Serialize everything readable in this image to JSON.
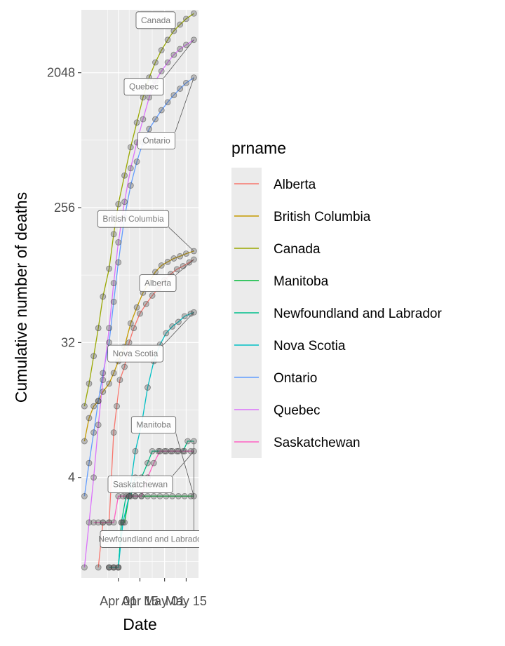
{
  "chart_data": {
    "type": "line",
    "xlabel": "Date",
    "ylabel": "Cumulative number of deaths",
    "y_scale": "log2",
    "ylim": [
      0.85,
      5400
    ],
    "y_ticks": [
      {
        "value": 4,
        "label": "4"
      },
      {
        "value": 32,
        "label": "32"
      },
      {
        "value": 256,
        "label": "256"
      },
      {
        "value": 2048,
        "label": "2048"
      }
    ],
    "x_ticks": [
      {
        "value": "2020-04-01",
        "label": "Apr 01"
      },
      {
        "value": "2020-04-15",
        "label": "Apr 15"
      },
      {
        "value": "2020-05-01",
        "label": "May 01"
      },
      {
        "value": "2020-05-15",
        "label": "May 15"
      }
    ],
    "xlim": [
      "2020-03-08",
      "2020-05-23"
    ],
    "grid": true,
    "legend": {
      "title": "prname",
      "position": "right"
    },
    "series": [
      {
        "name": "Alberta",
        "color": "#F8766D",
        "label": "Alberta",
        "points": [
          [
            "2020-03-19",
            1
          ],
          [
            "2020-03-22",
            2
          ],
          [
            "2020-03-26",
            2
          ],
          [
            "2020-03-29",
            8
          ],
          [
            "2020-03-31",
            12
          ],
          [
            "2020-04-02",
            18
          ],
          [
            "2020-04-05",
            22
          ],
          [
            "2020-04-08",
            32
          ],
          [
            "2020-04-11",
            40
          ],
          [
            "2020-04-15",
            50
          ],
          [
            "2020-04-19",
            58
          ],
          [
            "2020-04-23",
            66
          ],
          [
            "2020-04-27",
            74
          ],
          [
            "2020-05-01",
            84
          ],
          [
            "2020-05-05",
            92
          ],
          [
            "2020-05-09",
            99
          ],
          [
            "2020-05-13",
            104
          ],
          [
            "2020-05-17",
            110
          ],
          [
            "2020-05-20",
            115
          ]
        ]
      },
      {
        "name": "British Columbia",
        "color": "#C49A00",
        "label": "British Columbia",
        "points": [
          [
            "2020-03-10",
            7
          ],
          [
            "2020-03-13",
            10
          ],
          [
            "2020-03-16",
            12
          ],
          [
            "2020-03-19",
            13
          ],
          [
            "2020-03-22",
            15
          ],
          [
            "2020-03-26",
            17
          ],
          [
            "2020-03-29",
            20
          ],
          [
            "2020-04-01",
            24
          ],
          [
            "2020-04-05",
            30
          ],
          [
            "2020-04-09",
            43
          ],
          [
            "2020-04-13",
            55
          ],
          [
            "2020-04-17",
            69
          ],
          [
            "2020-04-21",
            81
          ],
          [
            "2020-04-25",
            95
          ],
          [
            "2020-04-29",
            105
          ],
          [
            "2020-05-03",
            111
          ],
          [
            "2020-05-07",
            117
          ],
          [
            "2020-05-11",
            121
          ],
          [
            "2020-05-15",
            126
          ],
          [
            "2020-05-20",
            131
          ]
        ]
      },
      {
        "name": "Canada",
        "color": "#99A800",
        "label": "Canada",
        "points": [
          [
            "2020-03-10",
            12
          ],
          [
            "2020-03-13",
            17
          ],
          [
            "2020-03-16",
            26
          ],
          [
            "2020-03-19",
            40
          ],
          [
            "2020-03-22",
            65
          ],
          [
            "2020-03-26",
            100
          ],
          [
            "2020-03-29",
            170
          ],
          [
            "2020-04-01",
            270
          ],
          [
            "2020-04-05",
            420
          ],
          [
            "2020-04-09",
            650
          ],
          [
            "2020-04-13",
            950
          ],
          [
            "2020-04-17",
            1400
          ],
          [
            "2020-04-21",
            1900
          ],
          [
            "2020-04-25",
            2400
          ],
          [
            "2020-04-29",
            2900
          ],
          [
            "2020-05-03",
            3400
          ],
          [
            "2020-05-07",
            3900
          ],
          [
            "2020-05-11",
            4300
          ],
          [
            "2020-05-15",
            4700
          ],
          [
            "2020-05-20",
            5100
          ]
        ]
      },
      {
        "name": "Manitoba",
        "color": "#00BA38",
        "label": "Manitoba",
        "points": [
          [
            "2020-03-26",
            1
          ],
          [
            "2020-03-29",
            1
          ],
          [
            "2020-04-01",
            1
          ],
          [
            "2020-04-03",
            2
          ],
          [
            "2020-04-05",
            2
          ],
          [
            "2020-04-08",
            3
          ],
          [
            "2020-04-12",
            3
          ],
          [
            "2020-04-16",
            3
          ],
          [
            "2020-04-20",
            3
          ],
          [
            "2020-04-24",
            3
          ],
          [
            "2020-04-28",
            3
          ],
          [
            "2020-05-02",
            3
          ],
          [
            "2020-05-06",
            3
          ],
          [
            "2020-05-10",
            3
          ],
          [
            "2020-05-14",
            3
          ],
          [
            "2020-05-18",
            3
          ],
          [
            "2020-05-20",
            3
          ]
        ]
      },
      {
        "name": "Newfoundland and Labrador",
        "color": "#00C08B",
        "label": "Newfoundland and Labrador",
        "points": [
          [
            "2020-03-26",
            1
          ],
          [
            "2020-03-29",
            1
          ],
          [
            "2020-04-01",
            1
          ],
          [
            "2020-04-03",
            2
          ],
          [
            "2020-04-06",
            3
          ],
          [
            "2020-04-09",
            3
          ],
          [
            "2020-04-12",
            4
          ],
          [
            "2020-04-16",
            4
          ],
          [
            "2020-04-20",
            5
          ],
          [
            "2020-04-23",
            6
          ],
          [
            "2020-04-27",
            6
          ],
          [
            "2020-05-01",
            6
          ],
          [
            "2020-05-05",
            6
          ],
          [
            "2020-05-09",
            6
          ],
          [
            "2020-05-13",
            6
          ],
          [
            "2020-05-16",
            7
          ],
          [
            "2020-05-20",
            7
          ]
        ]
      },
      {
        "name": "Nova Scotia",
        "color": "#00BFC4",
        "label": "Nova Scotia",
        "points": [
          [
            "2020-03-26",
            1
          ],
          [
            "2020-03-29",
            1
          ],
          [
            "2020-04-01",
            1
          ],
          [
            "2020-04-04",
            2
          ],
          [
            "2020-04-08",
            3
          ],
          [
            "2020-04-12",
            6
          ],
          [
            "2020-04-16",
            9
          ],
          [
            "2020-04-20",
            16
          ],
          [
            "2020-04-24",
            24
          ],
          [
            "2020-04-28",
            31
          ],
          [
            "2020-05-02",
            37
          ],
          [
            "2020-05-06",
            41
          ],
          [
            "2020-05-10",
            44
          ],
          [
            "2020-05-14",
            48
          ],
          [
            "2020-05-18",
            50
          ],
          [
            "2020-05-20",
            51
          ]
        ]
      },
      {
        "name": "Ontario",
        "color": "#619CFF",
        "label": "Ontario",
        "points": [
          [
            "2020-03-10",
            3
          ],
          [
            "2020-03-13",
            5
          ],
          [
            "2020-03-16",
            8
          ],
          [
            "2020-03-19",
            13
          ],
          [
            "2020-03-22",
            20
          ],
          [
            "2020-03-26",
            32
          ],
          [
            "2020-03-29",
            60
          ],
          [
            "2020-04-01",
            110
          ],
          [
            "2020-04-05",
            220
          ],
          [
            "2020-04-09",
            360
          ],
          [
            "2020-04-13",
            520
          ],
          [
            "2020-04-17",
            700
          ],
          [
            "2020-04-21",
            860
          ],
          [
            "2020-04-25",
            1000
          ],
          [
            "2020-04-29",
            1150
          ],
          [
            "2020-05-03",
            1300
          ],
          [
            "2020-05-07",
            1450
          ],
          [
            "2020-05-11",
            1600
          ],
          [
            "2020-05-15",
            1750
          ],
          [
            "2020-05-20",
            1900
          ]
        ]
      },
      {
        "name": "Quebec",
        "color": "#DB72FB",
        "label": "Quebec",
        "points": [
          [
            "2020-03-10",
            1
          ],
          [
            "2020-03-13",
            2
          ],
          [
            "2020-03-16",
            4
          ],
          [
            "2020-03-19",
            9
          ],
          [
            "2020-03-22",
            18
          ],
          [
            "2020-03-26",
            40
          ],
          [
            "2020-03-29",
            80
          ],
          [
            "2020-04-01",
            150
          ],
          [
            "2020-04-05",
            280
          ],
          [
            "2020-04-09",
            470
          ],
          [
            "2020-04-13",
            700
          ],
          [
            "2020-04-17",
            1000
          ],
          [
            "2020-04-21",
            1400
          ],
          [
            "2020-04-25",
            1800
          ],
          [
            "2020-04-29",
            2100
          ],
          [
            "2020-05-03",
            2400
          ],
          [
            "2020-05-07",
            2700
          ],
          [
            "2020-05-11",
            2950
          ],
          [
            "2020-05-15",
            3150
          ],
          [
            "2020-05-20",
            3400
          ]
        ]
      },
      {
        "name": "Saskatchewan",
        "color": "#FF61C3",
        "label": "Saskatchewan",
        "points": [
          [
            "2020-03-16",
            2
          ],
          [
            "2020-03-19",
            2
          ],
          [
            "2020-03-22",
            2
          ],
          [
            "2020-03-26",
            2
          ],
          [
            "2020-03-29",
            2
          ],
          [
            "2020-04-01",
            3
          ],
          [
            "2020-04-04",
            3
          ],
          [
            "2020-04-08",
            3
          ],
          [
            "2020-04-12",
            3
          ],
          [
            "2020-04-16",
            3
          ],
          [
            "2020-04-20",
            4
          ],
          [
            "2020-04-24",
            5
          ],
          [
            "2020-04-28",
            6
          ],
          [
            "2020-05-02",
            6
          ],
          [
            "2020-05-06",
            6
          ],
          [
            "2020-05-10",
            6
          ],
          [
            "2020-05-14",
            6
          ],
          [
            "2020-05-18",
            6
          ],
          [
            "2020-05-20",
            6
          ]
        ]
      }
    ]
  }
}
